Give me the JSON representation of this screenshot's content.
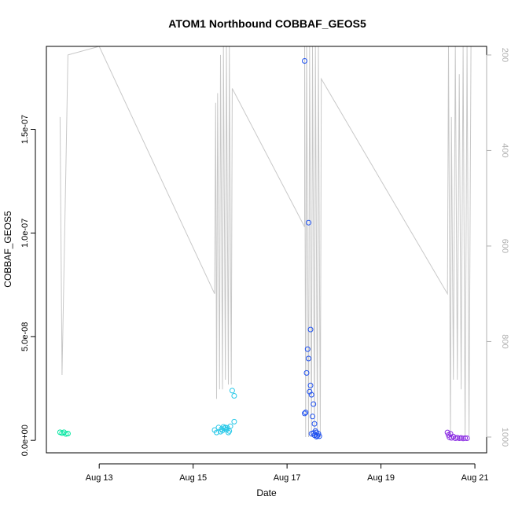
{
  "chart_data": {
    "type": "scatter",
    "title": "ATOM1 Northbound COBBAF_GEOS5",
    "xlabel": "Date",
    "ylabel": "COBBAF_GEOS5",
    "xlim": [
      "2016-08-11 21:00",
      "2016-08-21 06:00"
    ],
    "ylim": [
      -6e-09,
      1.9e-07
    ],
    "x_ticks": [
      {
        "value": "2016-08-13 00:00",
        "label": "Aug 13"
      },
      {
        "value": "2016-08-15 00:00",
        "label": "Aug 15"
      },
      {
        "value": "2016-08-17 00:00",
        "label": "Aug 17"
      },
      {
        "value": "2016-08-19 00:00",
        "label": "Aug 19"
      },
      {
        "value": "2016-08-21 00:00",
        "label": "Aug 21"
      }
    ],
    "y_ticks": [
      {
        "value": 0,
        "label": "0.0e+00"
      },
      {
        "value": 5e-08,
        "label": "5.0e-08"
      },
      {
        "value": 1e-07,
        "label": "1.0e-07"
      },
      {
        "value": 1.5e-07,
        "label": "1.5e-07"
      }
    ],
    "right_axis": {
      "ylim": [
        1033,
        182
      ],
      "ticks": [
        {
          "value": 200,
          "label": "200"
        },
        {
          "value": 400,
          "label": "400"
        },
        {
          "value": 600,
          "label": "600"
        },
        {
          "value": 800,
          "label": "800"
        },
        {
          "value": 1000,
          "label": "1000"
        }
      ]
    },
    "colors": {
      "pressure_line": "#c8c8c8",
      "flight1": "#00e6a0",
      "flight2": "#28c8e8",
      "flight3": "#1e50f0",
      "flight4": "#8a2be2"
    },
    "series": [
      {
        "color_key": "flight1",
        "points": [
          {
            "x": "2016-08-12 04:00",
            "y": 3.9e-09
          },
          {
            "x": "2016-08-12 05:00",
            "y": 3.5e-09
          },
          {
            "x": "2016-08-12 06:00",
            "y": 3.9e-09
          },
          {
            "x": "2016-08-12 07:00",
            "y": 3.1e-09
          },
          {
            "x": "2016-08-12 08:00",
            "y": 3.3e-09
          }
        ]
      },
      {
        "color_key": "flight2",
        "points": [
          {
            "x": "2016-08-15 11:00",
            "y": 5e-09
          },
          {
            "x": "2016-08-15 12:00",
            "y": 3.8e-09
          },
          {
            "x": "2016-08-15 13:00",
            "y": 6.2e-09
          },
          {
            "x": "2016-08-15 14:00",
            "y": 4.2e-09
          },
          {
            "x": "2016-08-15 14:30",
            "y": 5.5e-09
          },
          {
            "x": "2016-08-15 15:00",
            "y": 4.8e-09
          },
          {
            "x": "2016-08-15 15:30",
            "y": 6.5e-09
          },
          {
            "x": "2016-08-15 16:00",
            "y": 5.8e-09
          },
          {
            "x": "2016-08-15 16:30",
            "y": 6.2e-09
          },
          {
            "x": "2016-08-15 17:00",
            "y": 5.2e-09
          },
          {
            "x": "2016-08-15 17:30",
            "y": 6e-09
          },
          {
            "x": "2016-08-15 18:00",
            "y": 3.8e-09
          },
          {
            "x": "2016-08-15 18:30",
            "y": 4.5e-09
          },
          {
            "x": "2016-08-15 19:00",
            "y": 6.8e-09
          },
          {
            "x": "2016-08-15 20:00",
            "y": 2.4e-08
          },
          {
            "x": "2016-08-15 21:00",
            "y": 2.15e-08
          },
          {
            "x": "2016-08-15 21:00",
            "y": 9e-09
          }
        ]
      },
      {
        "color_key": "flight3",
        "points": [
          {
            "x": "2016-08-17 09:00",
            "y": 1.3e-08
          },
          {
            "x": "2016-08-17 09:00",
            "y": 1.83e-07
          },
          {
            "x": "2016-08-17 09:30",
            "y": 1.35e-08
          },
          {
            "x": "2016-08-17 10:00",
            "y": 3.25e-08
          },
          {
            "x": "2016-08-17 10:30",
            "y": 4.4e-08
          },
          {
            "x": "2016-08-17 11:00",
            "y": 1.05e-07
          },
          {
            "x": "2016-08-17 11:00",
            "y": 3.95e-08
          },
          {
            "x": "2016-08-17 11:30",
            "y": 2.35e-08
          },
          {
            "x": "2016-08-17 12:00",
            "y": 5.35e-08
          },
          {
            "x": "2016-08-17 12:00",
            "y": 2.65e-08
          },
          {
            "x": "2016-08-17 12:30",
            "y": 2.2e-08
          },
          {
            "x": "2016-08-17 12:30",
            "y": 3.2e-09
          },
          {
            "x": "2016-08-17 13:00",
            "y": 1.15e-08
          },
          {
            "x": "2016-08-17 13:30",
            "y": 1.75e-08
          },
          {
            "x": "2016-08-17 13:30",
            "y": 3.5e-09
          },
          {
            "x": "2016-08-17 14:00",
            "y": 8e-09
          },
          {
            "x": "2016-08-17 14:00",
            "y": 2.5e-09
          },
          {
            "x": "2016-08-17 14:30",
            "y": 4.5e-09
          },
          {
            "x": "2016-08-17 15:00",
            "y": 1.8e-09
          },
          {
            "x": "2016-08-17 15:00",
            "y": 3.8e-09
          },
          {
            "x": "2016-08-17 15:30",
            "y": 2.2e-09
          },
          {
            "x": "2016-08-17 16:00",
            "y": 3.2e-09
          },
          {
            "x": "2016-08-17 16:30",
            "y": 2e-09
          }
        ]
      },
      {
        "color_key": "flight4",
        "points": [
          {
            "x": "2016-08-20 10:00",
            "y": 3.8e-09
          },
          {
            "x": "2016-08-20 10:30",
            "y": 2.6e-09
          },
          {
            "x": "2016-08-20 11:00",
            "y": 1.5e-09
          },
          {
            "x": "2016-08-20 11:30",
            "y": 3.2e-09
          },
          {
            "x": "2016-08-20 12:00",
            "y": 1.2e-09
          },
          {
            "x": "2016-08-20 13:00",
            "y": 1.8e-09
          },
          {
            "x": "2016-08-20 14:00",
            "y": 1e-09
          },
          {
            "x": "2016-08-20 15:00",
            "y": 1.3e-09
          },
          {
            "x": "2016-08-20 16:00",
            "y": 1e-09
          },
          {
            "x": "2016-08-20 17:00",
            "y": 1.2e-09
          },
          {
            "x": "2016-08-20 18:00",
            "y": 9e-10
          },
          {
            "x": "2016-08-20 19:00",
            "y": 1.1e-09
          },
          {
            "x": "2016-08-20 20:00",
            "y": 1e-09
          }
        ]
      }
    ],
    "pressure_series": [
      [
        "2016-08-12 04:00",
        330
      ],
      [
        "2016-08-12 05:00",
        870
      ],
      [
        "2016-08-12 07:00",
        430
      ],
      [
        "2016-08-12 08:00",
        200
      ],
      [
        "2016-08-13 00:00",
        182
      ],
      [
        "2016-08-15 11:00",
        700
      ],
      [
        "2016-08-15 11:30",
        300
      ],
      [
        "2016-08-15 12:00",
        920
      ],
      [
        "2016-08-15 12:30",
        280
      ],
      [
        "2016-08-15 13:30",
        900
      ],
      [
        "2016-08-15 14:00",
        200
      ],
      [
        "2016-08-15 15:00",
        900
      ],
      [
        "2016-08-15 15:30",
        182
      ],
      [
        "2016-08-15 16:30",
        880
      ],
      [
        "2016-08-15 17:00",
        182
      ],
      [
        "2016-08-15 18:00",
        890
      ],
      [
        "2016-08-15 18:30",
        182
      ],
      [
        "2016-08-15 19:30",
        890
      ],
      [
        "2016-08-15 20:00",
        270
      ],
      [
        "2016-08-17 09:00",
        560
      ],
      [
        "2016-08-17 09:00",
        182
      ],
      [
        "2016-08-17 09:30",
        1000
      ],
      [
        "2016-08-17 10:00",
        182
      ],
      [
        "2016-08-17 11:00",
        1000
      ],
      [
        "2016-08-17 11:30",
        182
      ],
      [
        "2016-08-17 12:30",
        1000
      ],
      [
        "2016-08-17 13:00",
        182
      ],
      [
        "2016-08-17 14:00",
        1000
      ],
      [
        "2016-08-17 14:30",
        182
      ],
      [
        "2016-08-17 15:30",
        1000
      ],
      [
        "2016-08-17 16:00",
        182
      ],
      [
        "2016-08-17 17:00",
        1000
      ],
      [
        "2016-08-17 17:30",
        250
      ],
      [
        "2016-08-20 10:00",
        700
      ],
      [
        "2016-08-20 10:30",
        182
      ],
      [
        "2016-08-20 11:30",
        1000
      ],
      [
        "2016-08-20 12:00",
        330
      ],
      [
        "2016-08-20 13:00",
        880
      ],
      [
        "2016-08-20 14:00",
        182
      ],
      [
        "2016-08-20 15:00",
        880
      ],
      [
        "2016-08-20 16:00",
        240
      ],
      [
        "2016-08-20 17:00",
        900
      ],
      [
        "2016-08-20 18:00",
        182
      ],
      [
        "2016-08-20 19:00",
        1000
      ],
      [
        "2016-08-20 20:00",
        182
      ],
      [
        "2016-08-20 21:00",
        1000
      ],
      [
        "2016-08-20 22:00",
        182
      ]
    ]
  }
}
